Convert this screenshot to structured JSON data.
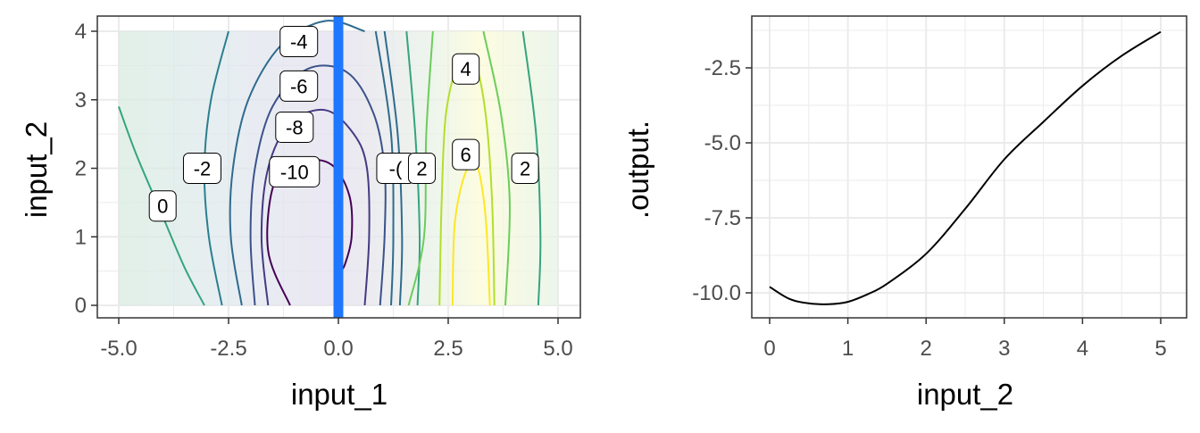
{
  "chart_data": [
    {
      "type": "contour",
      "xlabel": "input_1",
      "ylabel": "input_2",
      "xlim": [
        -5.0,
        5.0
      ],
      "ylim": [
        0,
        4
      ],
      "x_ticks": [
        "-5.0",
        "-2.5",
        "0.0",
        "2.5",
        "5.0"
      ],
      "y_ticks": [
        "0",
        "1",
        "2",
        "3",
        "4"
      ],
      "grid": true,
      "vertical_marker_x": 0.0,
      "marker_color": "#1f77ff",
      "contour_levels": [
        {
          "level": 0,
          "label": "0",
          "color": "#35a47e"
        },
        {
          "level": -2,
          "label": "-2",
          "color": "#2a7f8e"
        },
        {
          "level": -4,
          "label": "-4",
          "color": "#2f6b8e"
        },
        {
          "level": -6,
          "label": "-6",
          "color": "#3b528b"
        },
        {
          "level": -8,
          "label": "-8",
          "color": "#443a83"
        },
        {
          "level": -10,
          "label": "-10",
          "color": "#440154"
        },
        {
          "level": 2,
          "label": "2",
          "color": "#6ccd5a"
        },
        {
          "level": 4,
          "label": "4",
          "color": "#b4de2c"
        },
        {
          "level": 6,
          "label": "6",
          "color": "#fde725"
        }
      ],
      "inline_labels": [
        "0",
        "-2",
        "-4",
        "-6",
        "-8",
        "-10",
        "-(",
        "2",
        "4",
        "6",
        "2"
      ]
    },
    {
      "type": "line",
      "xlabel": "input_2",
      "ylabel": ".output.",
      "xlim": [
        0,
        5
      ],
      "ylim": [
        -10.6,
        -1.1
      ],
      "x_ticks": [
        "0",
        "1",
        "2",
        "3",
        "4",
        "5"
      ],
      "y_ticks": [
        "-2.5",
        "-5.0",
        "-7.5",
        "-10.0"
      ],
      "grid": true,
      "line_color": "#000000",
      "x": [
        0,
        0.25,
        0.5,
        0.75,
        1.0,
        1.25,
        1.5,
        2.0,
        2.5,
        3.0,
        3.5,
        4.0,
        4.5,
        5.0
      ],
      "y": [
        -9.8,
        -10.2,
        -10.35,
        -10.38,
        -10.3,
        -10.05,
        -9.7,
        -8.7,
        -7.2,
        -5.55,
        -4.3,
        -3.1,
        -2.1,
        -1.3
      ]
    }
  ]
}
